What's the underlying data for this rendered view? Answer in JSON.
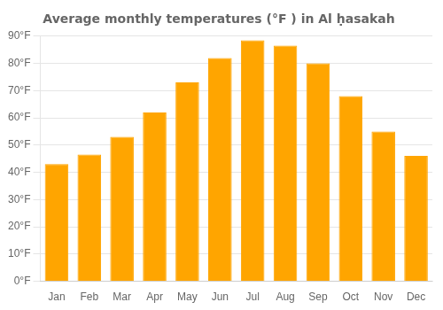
{
  "chart_data": {
    "type": "bar",
    "title": "Average monthly temperatures (°F ) in Al ḥasakah",
    "categories": [
      "Jan",
      "Feb",
      "Mar",
      "Apr",
      "May",
      "Jun",
      "Jul",
      "Aug",
      "Sep",
      "Oct",
      "Nov",
      "Dec"
    ],
    "values": [
      43,
      46.5,
      53,
      62,
      73,
      82,
      88.5,
      86.5,
      80,
      68,
      55,
      46
    ],
    "color": "#FFA500",
    "ylim": [
      0,
      90
    ],
    "yticks": [
      {
        "value": 0,
        "label": "0°F"
      },
      {
        "value": 10,
        "label": "10°F"
      },
      {
        "value": 20,
        "label": "20°F"
      },
      {
        "value": 30,
        "label": "30°F"
      },
      {
        "value": 40,
        "label": "40°F"
      },
      {
        "value": 50,
        "label": "50°F"
      },
      {
        "value": 60,
        "label": "60°F"
      },
      {
        "value": 70,
        "label": "70°F"
      },
      {
        "value": 80,
        "label": "80°F"
      },
      {
        "value": 90,
        "label": "90°F"
      }
    ],
    "grid": true
  }
}
